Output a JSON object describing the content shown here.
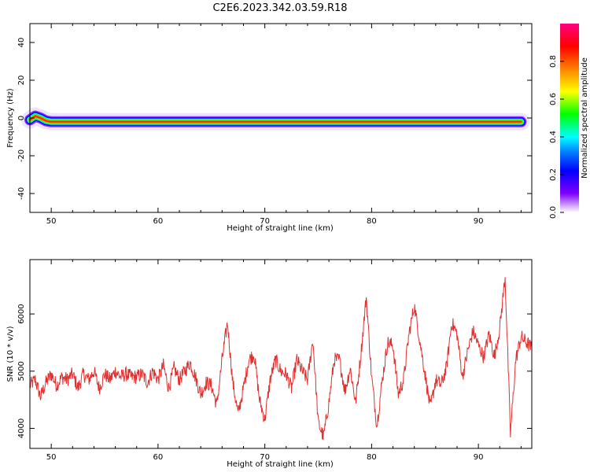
{
  "title": "C2E6.2023.342.03.59.R18",
  "colors": {
    "snr_line": "#e03030",
    "axis": "#000000",
    "background": "#ffffff"
  },
  "chart_data": [
    {
      "type": "heatmap",
      "xlabel": "Height of straight line (km)",
      "ylabel": "Frequency (Hz)",
      "xlim": [
        48,
        95
      ],
      "ylim": [
        -50,
        50
      ],
      "xticks": [
        50,
        60,
        70,
        80,
        90
      ],
      "yticks": [
        40,
        20,
        0,
        -20,
        -40
      ],
      "xtick_labels": [
        "50",
        "60",
        "70",
        "80",
        "90"
      ],
      "ytick_labels": [
        "40",
        "20",
        "0",
        "-20",
        "-40"
      ],
      "ridge": {
        "x": [
          48.0,
          48.5,
          49.0,
          49.5,
          50.0,
          51.0,
          55.0,
          60.0,
          65.0,
          70.0,
          75.0,
          80.0,
          85.0,
          90.0,
          94.0
        ],
        "frequency_hz": [
          -1.0,
          1.0,
          0.0,
          -1.5,
          -2.0,
          -2.0,
          -2.0,
          -2.0,
          -2.0,
          -2.0,
          -2.0,
          -2.0,
          -2.0,
          -2.0,
          -2.0
        ]
      },
      "colorbar": {
        "label": "Normalized spectral amplitude",
        "range": [
          0.0,
          1.0
        ],
        "ticks": [
          0.0,
          0.2,
          0.4,
          0.6,
          0.8
        ],
        "tick_labels": [
          "0.0",
          "0.2",
          "0.4",
          "0.6",
          "0.8"
        ]
      }
    },
    {
      "type": "line",
      "xlabel": "Height of straight line (km)",
      "ylabel": "SNR (10 * v/v)",
      "xlim": [
        48,
        95
      ],
      "ylim": [
        3650,
        6950
      ],
      "xticks": [
        50,
        60,
        70,
        80,
        90
      ],
      "yticks": [
        4000,
        5000,
        6000
      ],
      "xtick_labels": [
        "50",
        "60",
        "70",
        "80",
        "90"
      ],
      "ytick_labels": [
        "4000",
        "5000",
        "6000"
      ],
      "series": [
        {
          "x": [
            48.0,
            48.5,
            49.0,
            49.5,
            50.0,
            50.5,
            51.0,
            51.5,
            52.0,
            52.5,
            53.0,
            53.5,
            54.0,
            54.5,
            55.0,
            55.5,
            56.0,
            56.5,
            57.0,
            57.5,
            58.0,
            58.5,
            59.0,
            59.5,
            60.0,
            60.5,
            61.0,
            61.5,
            62.0,
            62.5,
            63.0,
            63.5,
            64.0,
            64.5,
            65.0,
            65.5,
            66.0,
            66.5,
            67.0,
            67.5,
            68.0,
            68.5,
            69.0,
            69.5,
            70.0,
            70.5,
            71.0,
            71.5,
            72.0,
            72.5,
            73.0,
            73.5,
            74.0,
            74.5,
            75.0,
            75.5,
            76.0,
            76.5,
            77.0,
            77.5,
            78.0,
            78.5,
            79.0,
            79.5,
            80.0,
            80.5,
            81.0,
            81.5,
            82.0,
            82.5,
            83.0,
            83.5,
            84.0,
            84.5,
            85.0,
            85.5,
            86.0,
            86.5,
            87.0,
            87.5,
            88.0,
            88.5,
            89.0,
            89.5,
            90.0,
            90.5,
            91.0,
            91.5,
            92.0,
            92.5,
            93.0,
            93.5,
            94.0,
            94.5,
            95.0
          ],
          "values": [
            4750,
            4850,
            4550,
            4800,
            4950,
            4750,
            4900,
            4850,
            4950,
            4700,
            4950,
            4850,
            5000,
            4700,
            4950,
            4850,
            5000,
            4900,
            4950,
            4900,
            4900,
            4950,
            4800,
            5000,
            4850,
            5100,
            4700,
            5050,
            4850,
            5000,
            5150,
            4900,
            4600,
            4800,
            4750,
            4400,
            5200,
            5850,
            4800,
            4250,
            4700,
            5200,
            5300,
            4500,
            4150,
            4850,
            5200,
            5000,
            4950,
            4700,
            5200,
            5000,
            4850,
            5550,
            4100,
            3850,
            4450,
            5200,
            5200,
            4650,
            5050,
            4450,
            5300,
            6300,
            4900,
            4050,
            4850,
            5500,
            5450,
            4600,
            4850,
            5650,
            6150,
            5550,
            4950,
            4350,
            4850,
            4750,
            5050,
            5850,
            5650,
            4900,
            5350,
            5700,
            5450,
            5250,
            5650,
            5250,
            5750,
            6650,
            3900,
            5200,
            5600,
            5500,
            5400
          ]
        }
      ]
    }
  ]
}
